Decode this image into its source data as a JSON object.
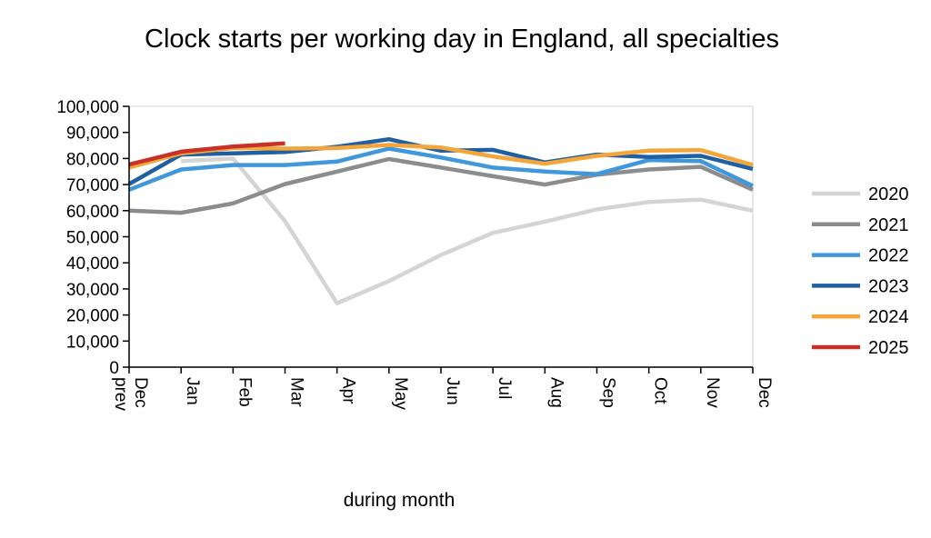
{
  "chart_data": {
    "type": "line",
    "title": "Clock starts per working day in England, all specialties",
    "xlabel": "during month",
    "ylabel": "",
    "ylim": [
      0,
      100000
    ],
    "yticks": [
      "0",
      "10,000",
      "20,000",
      "30,000",
      "40,000",
      "50,000",
      "60,000",
      "70,000",
      "80,000",
      "90,000",
      "100,000"
    ],
    "categories": [
      "Dec prev",
      "Jan",
      "Feb",
      "Mar",
      "Apr",
      "May",
      "Jun",
      "Jul",
      "Aug",
      "Sep",
      "Oct",
      "Nov",
      "Dec"
    ],
    "grid": false,
    "legend_position": "right",
    "series": [
      {
        "name": "2020",
        "color": "#d4d4d4",
        "values": [
          null,
          79000,
          80000,
          56000,
          24500,
          33000,
          43000,
          51500,
          55800,
          60500,
          63300,
          64200,
          60000
        ]
      },
      {
        "name": "2021",
        "color": "#8c8c8c",
        "values": [
          60000,
          59200,
          62800,
          70200,
          75000,
          79800,
          76500,
          73200,
          70000,
          73800,
          75800,
          76800,
          68000
        ]
      },
      {
        "name": "2022",
        "color": "#3f97dc",
        "values": [
          68000,
          75800,
          77500,
          77500,
          78800,
          83800,
          80400,
          76500,
          75000,
          74000,
          79400,
          79000,
          69500
        ]
      },
      {
        "name": "2023",
        "color": "#215fa3",
        "values": [
          70200,
          81500,
          82000,
          82500,
          84500,
          87400,
          83000,
          83300,
          78500,
          81500,
          80600,
          81000,
          76000
        ]
      },
      {
        "name": "2024",
        "color": "#f3a73b",
        "values": [
          76500,
          82000,
          84000,
          83800,
          84000,
          85200,
          84200,
          80800,
          78000,
          81000,
          83000,
          83200,
          77500
        ]
      },
      {
        "name": "2025",
        "color": "#c63227",
        "values": [
          77700,
          82600,
          84600,
          85800,
          null,
          null,
          null,
          null,
          null,
          null,
          null,
          null,
          null
        ]
      }
    ]
  }
}
